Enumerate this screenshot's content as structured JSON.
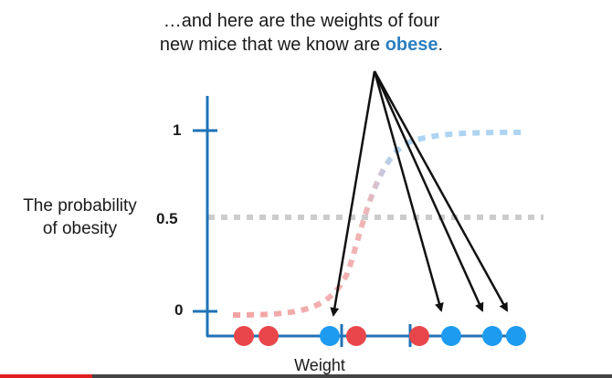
{
  "caption": {
    "line1": "…and here are the weights of four",
    "line2_before": "new mice that we know are ",
    "line2_emph": "obese",
    "line2_after": "."
  },
  "y_axis_label": {
    "line1": "The probability",
    "line2": "of obesity"
  },
  "x_axis_label": "Weight",
  "y_ticks": {
    "top": "1",
    "mid": "0.5",
    "bottom": "0"
  },
  "colors": {
    "axis": "#1f73b7",
    "not_obese": "#e8464a",
    "obese": "#1d9bf0",
    "emphasis_text": "#2b7fc1",
    "arrow": "#111111",
    "curve_low": "#f2a3a3",
    "curve_high": "#aed4f2",
    "dotted_line": "#cccccc"
  },
  "video_progress_fraction": 0.15
}
